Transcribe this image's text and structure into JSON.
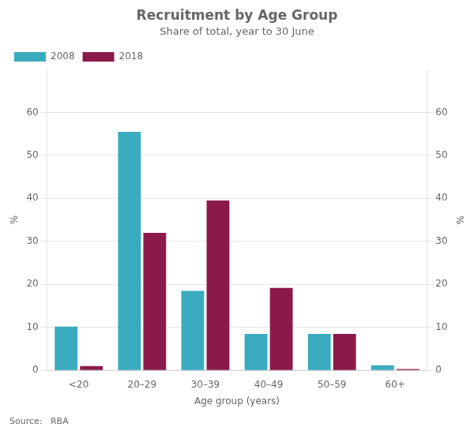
{
  "chart_data": {
    "type": "bar",
    "title": "Recruitment by Age Group",
    "subtitle": "Share of total, year to 30 June",
    "xlabel": "Age group (years)",
    "ylabel": "%",
    "y2label": "%",
    "source": "Source:   RBA",
    "categories": [
      "<20",
      "20–29",
      "30–39",
      "40–49",
      "50–59",
      "60+"
    ],
    "series": [
      {
        "name": "2008",
        "color": "#3aabbf",
        "values": [
          10.2,
          55.5,
          18.5,
          8.5,
          8.5,
          1.2
        ]
      },
      {
        "name": "2018",
        "color": "#8b1a4a",
        "values": [
          1.0,
          32.0,
          39.5,
          19.2,
          8.5,
          0.3
        ]
      }
    ],
    "ylim": [
      0,
      70
    ],
    "yticks": [
      0,
      10,
      20,
      30,
      40,
      50,
      60
    ],
    "y2lim": [
      0,
      70
    ],
    "y2ticks": [
      0,
      10,
      20,
      30,
      40,
      50,
      60
    ],
    "grid": true,
    "legend": "upper left"
  }
}
